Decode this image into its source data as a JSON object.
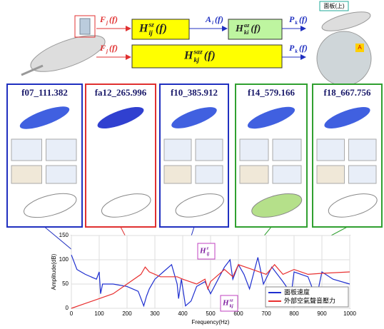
{
  "diagram": {
    "signals": [
      {
        "base": "F",
        "sub": "j",
        "arg": "(f)"
      },
      {
        "base": "A",
        "sub": "i",
        "arg": "(f)"
      },
      {
        "base": "P",
        "sub": "k",
        "arg": "(f)"
      },
      {
        "base": "F",
        "sub": "j",
        "arg": "(f)"
      },
      {
        "base": "P",
        "sub": "k",
        "arg": "(f)"
      }
    ],
    "blocks": [
      {
        "base": "H",
        "sub": "ij",
        "sup": "sz",
        "arg": "(f)"
      },
      {
        "base": "H",
        "sub": "ki",
        "sup": "az",
        "arg": "(f)"
      },
      {
        "base": "H",
        "sub": "kj",
        "sup": "saz",
        "arg": "(f)"
      }
    ],
    "callouts": [
      "面板(上)",
      "A"
    ],
    "panels": [
      "f07_111.382",
      "fa12_265.996",
      "f10_385.912",
      "f14_579.166",
      "f18_667.756"
    ]
  },
  "chart_data": {
    "type": "line",
    "xlabel": "Frequency(Hz)",
    "ylabel": "Amplitude(dB)",
    "xlim": [
      0,
      1000
    ],
    "ylim": [
      0,
      150
    ],
    "xticks": [
      0,
      100,
      200,
      300,
      400,
      500,
      600,
      700,
      800,
      900,
      1000
    ],
    "yticks": [
      0,
      50,
      100,
      150
    ],
    "grid": true,
    "legend": "lower right",
    "series": [
      {
        "name": "面板速度",
        "color": "#1f2fd0",
        "x": [
          0,
          20,
          50,
          90,
          100,
          105,
          112,
          150,
          200,
          240,
          260,
          270,
          280,
          300,
          330,
          360,
          380,
          385,
          395,
          410,
          430,
          450,
          480,
          500,
          550,
          570,
          580,
          600,
          620,
          640,
          670,
          690,
          720,
          760,
          790,
          800,
          850,
          880,
          900,
          940,
          1000
        ],
        "values": [
          110,
          80,
          70,
          60,
          75,
          30,
          50,
          50,
          45,
          35,
          5,
          25,
          40,
          60,
          75,
          90,
          50,
          20,
          60,
          5,
          15,
          45,
          55,
          30,
          85,
          100,
          60,
          90,
          70,
          40,
          105,
          50,
          85,
          55,
          30,
          75,
          65,
          20,
          75,
          60,
          50
        ]
      },
      {
        "name": "外部空氣聲音壓力",
        "color": "#e83030",
        "x": [
          0,
          50,
          100,
          150,
          200,
          250,
          265,
          280,
          320,
          380,
          400,
          450,
          480,
          490,
          500,
          550,
          580,
          600,
          650,
          700,
          730,
          760,
          800,
          850,
          900,
          1000
        ],
        "values": [
          0,
          10,
          20,
          30,
          50,
          70,
          85,
          75,
          65,
          65,
          60,
          50,
          60,
          40,
          55,
          80,
          65,
          90,
          80,
          70,
          90,
          70,
          80,
          70,
          72,
          75
        ]
      }
    ],
    "annotations": [
      {
        "base": "H",
        "sub": "ij",
        "sup": "z"
      },
      {
        "base": "H",
        "sub": "kj",
        "sup": "sz"
      }
    ]
  }
}
